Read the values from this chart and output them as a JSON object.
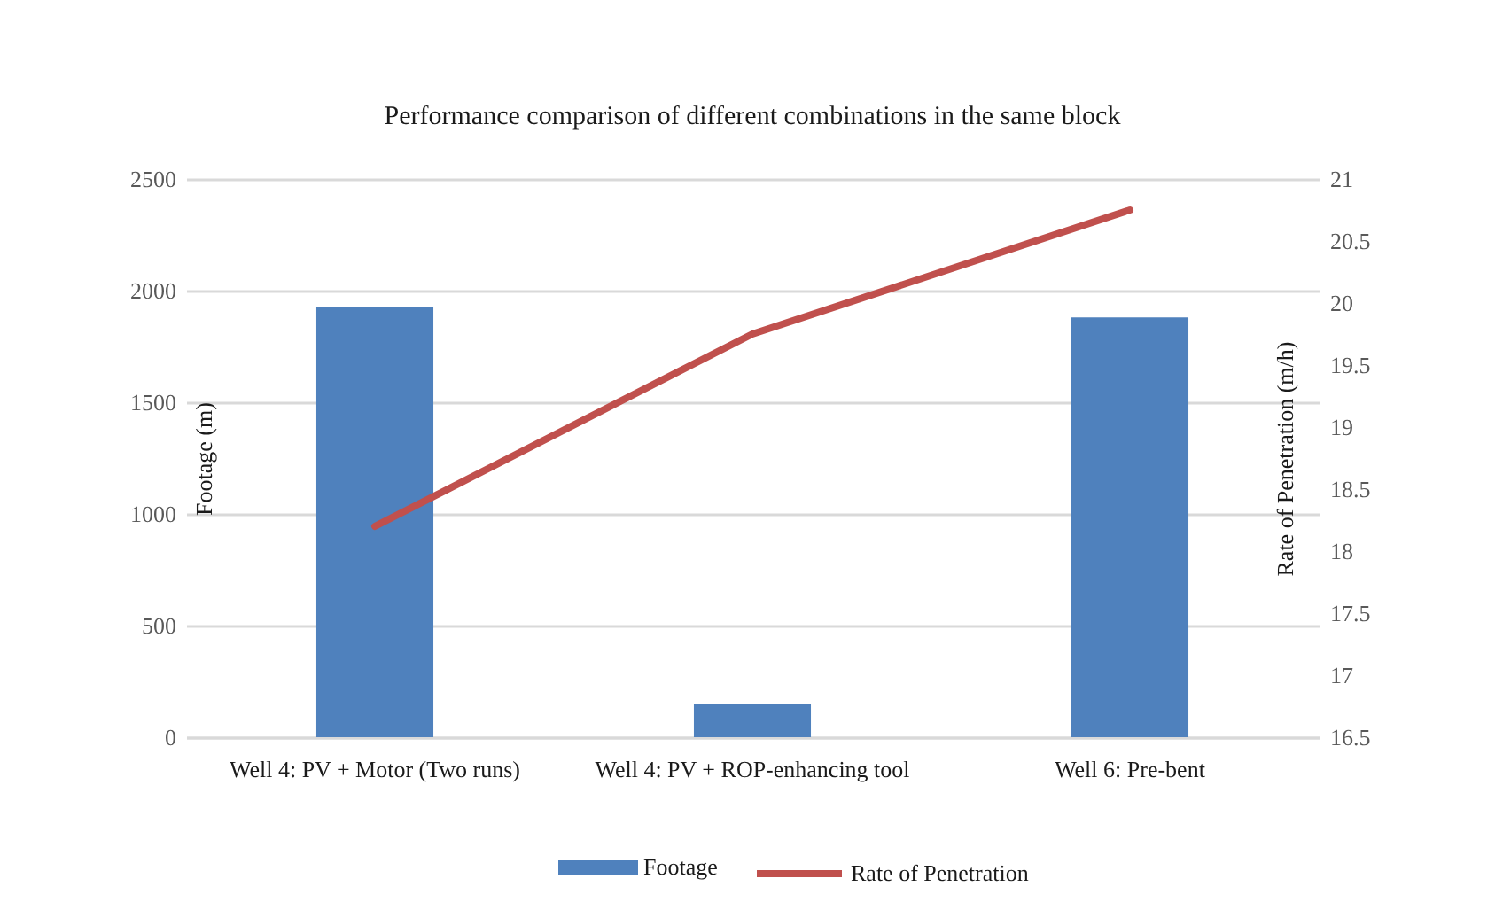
{
  "chart_data": {
    "type": "bar",
    "title": "Performance comparison of different combinations in the same block",
    "categories": [
      "Well 4: PV + Motor (Two runs)",
      "Well 4: PV + ROP-enhancing tool",
      "Well 6: Pre-bent"
    ],
    "ylabel": "Footage  (m)",
    "y2label": "Rate of Penetration (m/h)",
    "series": [
      {
        "name": "Footage",
        "color": "#4f81bd",
        "values": [
          1925,
          150,
          1880
        ]
      },
      {
        "name": "Rate of Penetration",
        "type": "line",
        "axis": "y2",
        "color": "#c0504d",
        "values": [
          18.2,
          19.75,
          20.75
        ]
      }
    ],
    "ylim": [
      0,
      2500
    ],
    "yticks": [
      0,
      500,
      1000,
      1500,
      2000,
      2500
    ],
    "y2lim": [
      16.5,
      21
    ],
    "y2ticks": [
      16.5,
      17,
      17.5,
      18,
      18.5,
      19,
      19.5,
      20,
      20.5,
      21
    ],
    "grid": "y",
    "legend": "bottom"
  }
}
